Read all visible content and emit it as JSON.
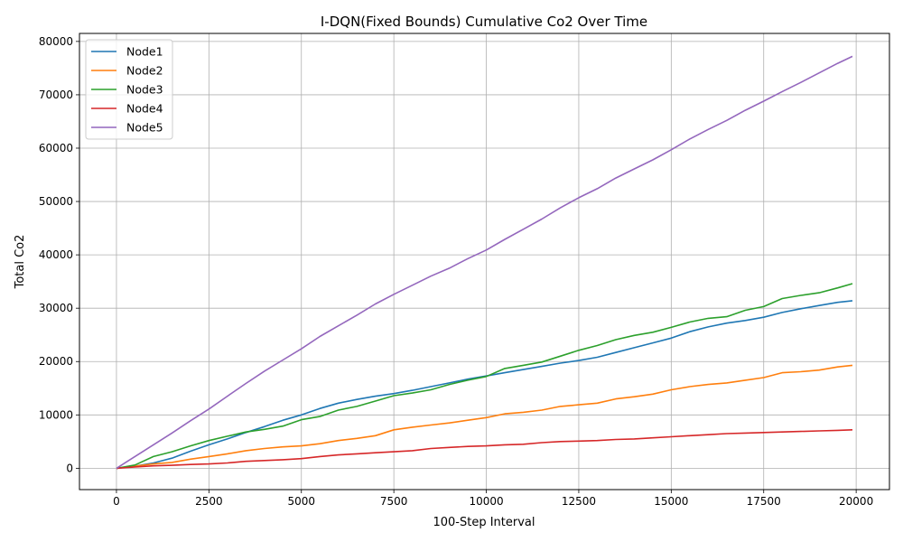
{
  "chart_data": {
    "type": "line",
    "title": "I-DQN(Fixed Bounds) Cumulative Co2 Over Time",
    "xlabel": "100-Step Interval",
    "ylabel": "Total Co2",
    "xlim": [
      -1000,
      20900
    ],
    "ylim": [
      -4000,
      81500
    ],
    "xticks": [
      0,
      2500,
      5000,
      7500,
      10000,
      12500,
      15000,
      17500,
      20000
    ],
    "yticks": [
      0,
      10000,
      20000,
      30000,
      40000,
      50000,
      60000,
      70000,
      80000
    ],
    "grid": true,
    "legend_position": "top-left",
    "x": [
      0,
      500,
      1000,
      1500,
      2000,
      2500,
      3000,
      3500,
      4000,
      4500,
      5000,
      5500,
      6000,
      6500,
      7000,
      7500,
      8000,
      8500,
      9000,
      9500,
      10000,
      10500,
      11000,
      11500,
      12000,
      12500,
      13000,
      13500,
      14000,
      14500,
      15000,
      15500,
      16000,
      16500,
      17000,
      17500,
      18000,
      18500,
      19000,
      19500,
      19900
    ],
    "series": [
      {
        "name": "Node1",
        "color": "#1f77b4",
        "values": [
          0,
          400,
          1000,
          1900,
          3200,
          4400,
          5500,
          6700,
          7800,
          9000,
          10000,
          11200,
          12200,
          12900,
          13500,
          14000,
          14600,
          15300,
          16000,
          16700,
          17300,
          17900,
          18500,
          19100,
          19700,
          20200,
          20800,
          21700,
          22600,
          23500,
          24400,
          25600,
          26500,
          27200,
          27700,
          28300,
          29200,
          29900,
          30500,
          31100,
          31400
        ]
      },
      {
        "name": "Node2",
        "color": "#ff7f0e",
        "values": [
          0,
          400,
          800,
          1100,
          1700,
          2200,
          2700,
          3300,
          3700,
          4000,
          4200,
          4600,
          5200,
          5600,
          6100,
          7200,
          7700,
          8100,
          8500,
          9000,
          9500,
          10200,
          10500,
          10900,
          11600,
          11900,
          12200,
          13000,
          13400,
          13900,
          14700,
          15300,
          15700,
          16000,
          16500,
          17000,
          17900,
          18100,
          18400,
          19000,
          19300
        ]
      },
      {
        "name": "Node3",
        "color": "#2ca02c",
        "values": [
          0,
          600,
          2200,
          3100,
          4200,
          5200,
          6000,
          6800,
          7300,
          7900,
          9100,
          9700,
          10900,
          11600,
          12600,
          13600,
          14100,
          14700,
          15700,
          16500,
          17200,
          18700,
          19300,
          19900,
          21000,
          22100,
          23000,
          24100,
          24900,
          25500,
          26400,
          27400,
          28100,
          28400,
          29600,
          30300,
          31800,
          32400,
          32900,
          33800,
          34600
        ]
      },
      {
        "name": "Node4",
        "color": "#d62728",
        "values": [
          0,
          250,
          450,
          550,
          700,
          800,
          1000,
          1300,
          1450,
          1600,
          1800,
          2200,
          2500,
          2700,
          2900,
          3100,
          3300,
          3700,
          3900,
          4100,
          4200,
          4400,
          4500,
          4800,
          5000,
          5100,
          5200,
          5400,
          5500,
          5700,
          5900,
          6100,
          6300,
          6500,
          6600,
          6700,
          6800,
          6900,
          7000,
          7100,
          7200
        ]
      },
      {
        "name": "Node5",
        "color": "#9467bd",
        "values": [
          0,
          2200,
          4400,
          6600,
          8900,
          11100,
          13500,
          15900,
          18200,
          20300,
          22400,
          24700,
          26700,
          28700,
          30800,
          32600,
          34300,
          36000,
          37500,
          39300,
          40900,
          42900,
          44800,
          46700,
          48800,
          50700,
          52400,
          54400,
          56100,
          57800,
          59700,
          61700,
          63500,
          65200,
          67100,
          68800,
          70600,
          72300,
          74100,
          75900,
          77200
        ]
      }
    ]
  }
}
